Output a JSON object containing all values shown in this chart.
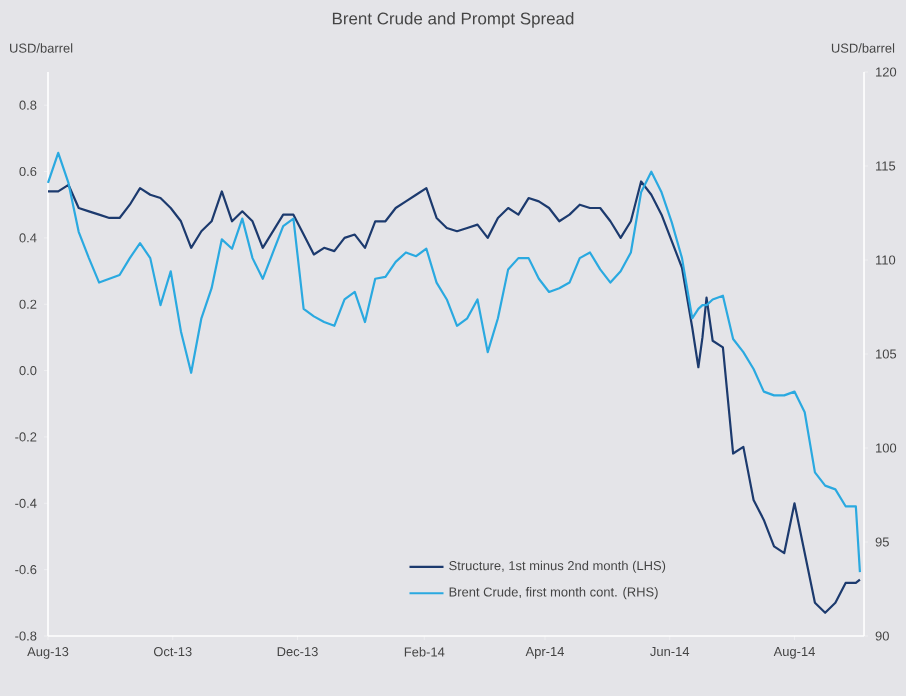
{
  "chart_data": {
    "type": "line",
    "title": "Brent Crude and Prompt Spread",
    "ylabel": "USD/barrel",
    "y2label": "USD/barrel",
    "x": [
      "2013-08-01",
      "2013-08-06",
      "2013-08-11",
      "2013-08-16",
      "2013-08-21",
      "2013-08-26",
      "2013-08-31",
      "2013-09-05",
      "2013-09-10",
      "2013-09-15",
      "2013-09-20",
      "2013-09-25",
      "2013-09-30",
      "2013-10-05",
      "2013-10-10",
      "2013-10-15",
      "2013-10-20",
      "2013-10-25",
      "2013-10-30",
      "2013-11-04",
      "2013-11-09",
      "2013-11-14",
      "2013-11-19",
      "2013-11-24",
      "2013-11-29",
      "2013-12-04",
      "2013-12-09",
      "2013-12-14",
      "2013-12-19",
      "2013-12-24",
      "2013-12-29",
      "2014-01-03",
      "2014-01-08",
      "2014-01-13",
      "2014-01-18",
      "2014-01-23",
      "2014-01-28",
      "2014-02-02",
      "2014-02-07",
      "2014-02-12",
      "2014-02-17",
      "2014-02-22",
      "2014-02-27",
      "2014-03-04",
      "2014-03-09",
      "2014-03-14",
      "2014-03-19",
      "2014-03-24",
      "2014-03-29",
      "2014-04-03",
      "2014-04-08",
      "2014-04-13",
      "2014-04-18",
      "2014-04-23",
      "2014-04-28",
      "2014-05-03",
      "2014-05-08",
      "2014-05-13",
      "2014-05-18",
      "2014-05-23",
      "2014-05-28",
      "2014-06-02",
      "2014-06-07",
      "2014-06-12",
      "2014-06-15",
      "2014-06-17",
      "2014-06-19",
      "2014-06-22",
      "2014-06-27",
      "2014-07-02",
      "2014-07-07",
      "2014-07-12",
      "2014-07-17",
      "2014-07-22",
      "2014-07-27",
      "2014-08-01",
      "2014-08-06",
      "2014-08-11",
      "2014-08-16",
      "2014-08-21",
      "2014-08-26",
      "2014-08-31",
      "2014-09-02"
    ],
    "series": [
      {
        "name": "Structure, 1st minus 2nd month (LHS)",
        "color": "#1c3a6e",
        "values": [
          0.54,
          0.54,
          0.56,
          0.49,
          0.48,
          0.47,
          0.46,
          0.46,
          0.5,
          0.55,
          0.53,
          0.52,
          0.49,
          0.45,
          0.37,
          0.42,
          0.45,
          0.54,
          0.45,
          0.48,
          0.45,
          0.37,
          0.42,
          0.47,
          0.47,
          0.41,
          0.35,
          0.37,
          0.36,
          0.4,
          0.41,
          0.37,
          0.45,
          0.45,
          0.49,
          0.51,
          0.53,
          0.55,
          0.46,
          0.43,
          0.42,
          0.43,
          0.44,
          0.4,
          0.46,
          0.49,
          0.47,
          0.52,
          0.51,
          0.49,
          0.45,
          0.47,
          0.5,
          0.49,
          0.49,
          0.45,
          0.4,
          0.45,
          0.57,
          0.53,
          0.47,
          0.39,
          0.31,
          0.13,
          0.01,
          0.1,
          0.22,
          0.09,
          0.07,
          -0.25,
          -0.23,
          -0.39,
          -0.45,
          -0.53,
          -0.55,
          -0.4,
          -0.55,
          -0.7,
          -0.73,
          -0.7,
          -0.64,
          -0.64,
          -0.63
        ]
      },
      {
        "name": "Brent Crude, first month cont. (RHS)",
        "color": "#2aa9e0",
        "axis": "y2",
        "values": [
          114.1,
          115.7,
          114.1,
          111.5,
          110.1,
          108.8,
          109.0,
          109.2,
          110.1,
          110.9,
          110.1,
          107.6,
          109.4,
          106.2,
          104.0,
          106.9,
          108.5,
          111.1,
          110.6,
          112.2,
          110.1,
          109.0,
          110.4,
          111.8,
          112.2,
          107.4,
          107.0,
          106.7,
          106.5,
          107.9,
          108.3,
          106.7,
          109.0,
          109.1,
          109.9,
          110.4,
          110.2,
          110.6,
          108.8,
          107.9,
          106.5,
          106.9,
          107.9,
          105.1,
          106.9,
          109.5,
          110.1,
          110.1,
          109.0,
          108.3,
          108.5,
          108.8,
          110.1,
          110.4,
          109.5,
          108.8,
          109.4,
          110.4,
          113.6,
          114.7,
          113.6,
          112.0,
          110.1,
          106.9,
          107.4,
          107.6,
          107.6,
          107.9,
          108.1,
          105.8,
          105.1,
          104.2,
          103.0,
          102.8,
          102.8,
          103.0,
          101.9,
          98.7,
          98.0,
          97.8,
          96.9,
          96.9,
          93.4
        ]
      }
    ],
    "xlim": [
      "2013-08-01",
      "2014-09-04"
    ],
    "xticks": [
      {
        "value": "2013-08-01",
        "label": "Aug-13"
      },
      {
        "value": "2013-10-01",
        "label": "Oct-13"
      },
      {
        "value": "2013-12-01",
        "label": "Dec-13"
      },
      {
        "value": "2014-02-01",
        "label": "Feb-14"
      },
      {
        "value": "2014-04-01",
        "label": "Apr-14"
      },
      {
        "value": "2014-06-01",
        "label": "Jun-14"
      },
      {
        "value": "2014-08-01",
        "label": "Aug-14"
      }
    ],
    "ylim": [
      -0.8,
      0.9
    ],
    "yticks": [
      {
        "value": -0.8,
        "label": "-0.8"
      },
      {
        "value": -0.6,
        "label": "-0.6"
      },
      {
        "value": -0.4,
        "label": "-0.4"
      },
      {
        "value": -0.2,
        "label": "-0.2"
      },
      {
        "value": 0,
        "label": "0.0"
      },
      {
        "value": 0.2,
        "label": "0.2"
      },
      {
        "value": 0.4,
        "label": "0.4"
      },
      {
        "value": 0.6,
        "label": "0.6"
      },
      {
        "value": 0.8,
        "label": "0.8"
      }
    ],
    "y2lim": [
      90,
      120
    ],
    "y2ticks": [
      90,
      95,
      100,
      105,
      110,
      115,
      120
    ],
    "legend": "bottom right"
  }
}
